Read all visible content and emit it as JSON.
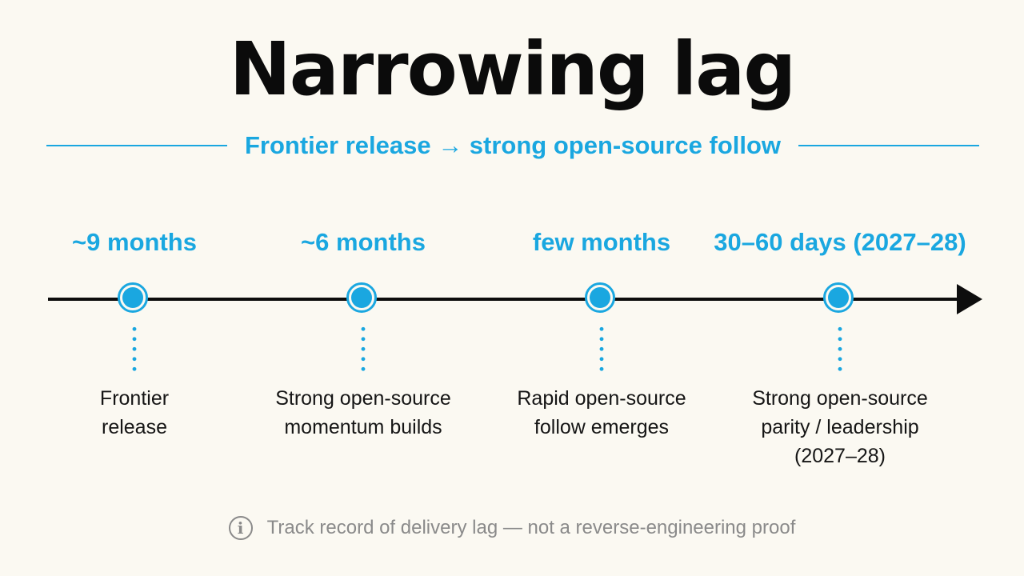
{
  "title": "Narrowing lag",
  "subtitle": "Frontier release → strong open-source follow",
  "milestones": [
    {
      "lag": "~9 months",
      "lines": [
        "Frontier",
        "release"
      ]
    },
    {
      "lag": "~6 months",
      "lines": [
        "Strong open-source",
        "momentum builds"
      ]
    },
    {
      "lag": "few months",
      "lines": [
        "Rapid open-source",
        "follow emerges"
      ]
    },
    {
      "lag": "30–60 days (2027–28)",
      "lines": [
        "Strong open-source",
        "parity / leadership",
        "(2027–28)"
      ]
    }
  ],
  "footnote": {
    "icon": "info-icon",
    "icon_glyph": "i",
    "text": "Track record of delivery lag — not a reverse-engineering proof"
  },
  "colors": {
    "accent": "#1aa7e0",
    "ink": "#0d0d0d",
    "muted": "#8a8a8a",
    "background": "#fbf9f2"
  }
}
